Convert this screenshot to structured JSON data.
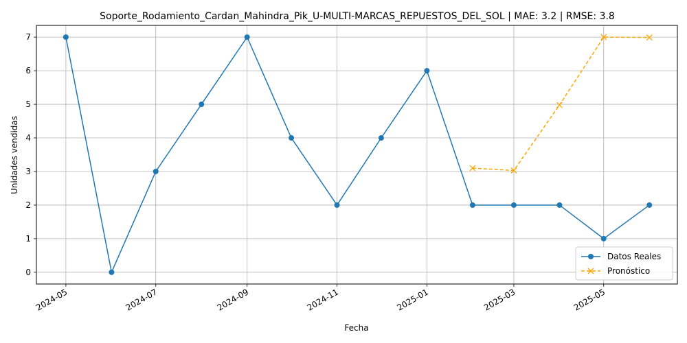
{
  "chart_data": {
    "type": "line",
    "title": "Soporte_Rodamiento_Cardan_Mahindra_Pik_U-MULTI-MARCAS_REPUESTOS_DEL_SOL | MAE: 3.2 | RMSE: 3.8",
    "xlabel": "Fecha",
    "ylabel": "Unidades vendidas",
    "xlim": [
      "2024-04-11",
      "2025-06-20"
    ],
    "ylim": [
      -0.35,
      7.35
    ],
    "x_ticks": [
      "2024-05",
      "2024-07",
      "2024-09",
      "2024-11",
      "2025-01",
      "2025-03",
      "2025-05"
    ],
    "y_ticks": [
      0,
      1,
      2,
      3,
      4,
      5,
      6,
      7
    ],
    "grid": true,
    "legend_position": "lower-right",
    "series": [
      {
        "name": "Datos Reales",
        "color": "#1f77b4",
        "marker": "circle",
        "linestyle": "solid",
        "x": [
          "2024-05-01",
          "2024-06-01",
          "2024-07-01",
          "2024-08-01",
          "2024-09-01",
          "2024-10-01",
          "2024-11-01",
          "2024-12-01",
          "2025-01-01",
          "2025-02-01",
          "2025-03-01",
          "2025-04-01",
          "2025-05-01",
          "2025-06-01"
        ],
        "values": [
          7,
          0,
          3,
          5,
          7,
          4,
          2,
          4,
          6,
          2,
          2,
          2,
          1,
          2
        ]
      },
      {
        "name": "Pronóstico",
        "color": "#ffa500",
        "marker": "x",
        "linestyle": "dashed",
        "x": [
          "2025-02-01",
          "2025-03-01",
          "2025-04-01",
          "2025-05-01",
          "2025-06-01"
        ],
        "values": [
          3.1,
          3.03,
          4.98,
          7.0,
          6.99
        ]
      }
    ]
  }
}
